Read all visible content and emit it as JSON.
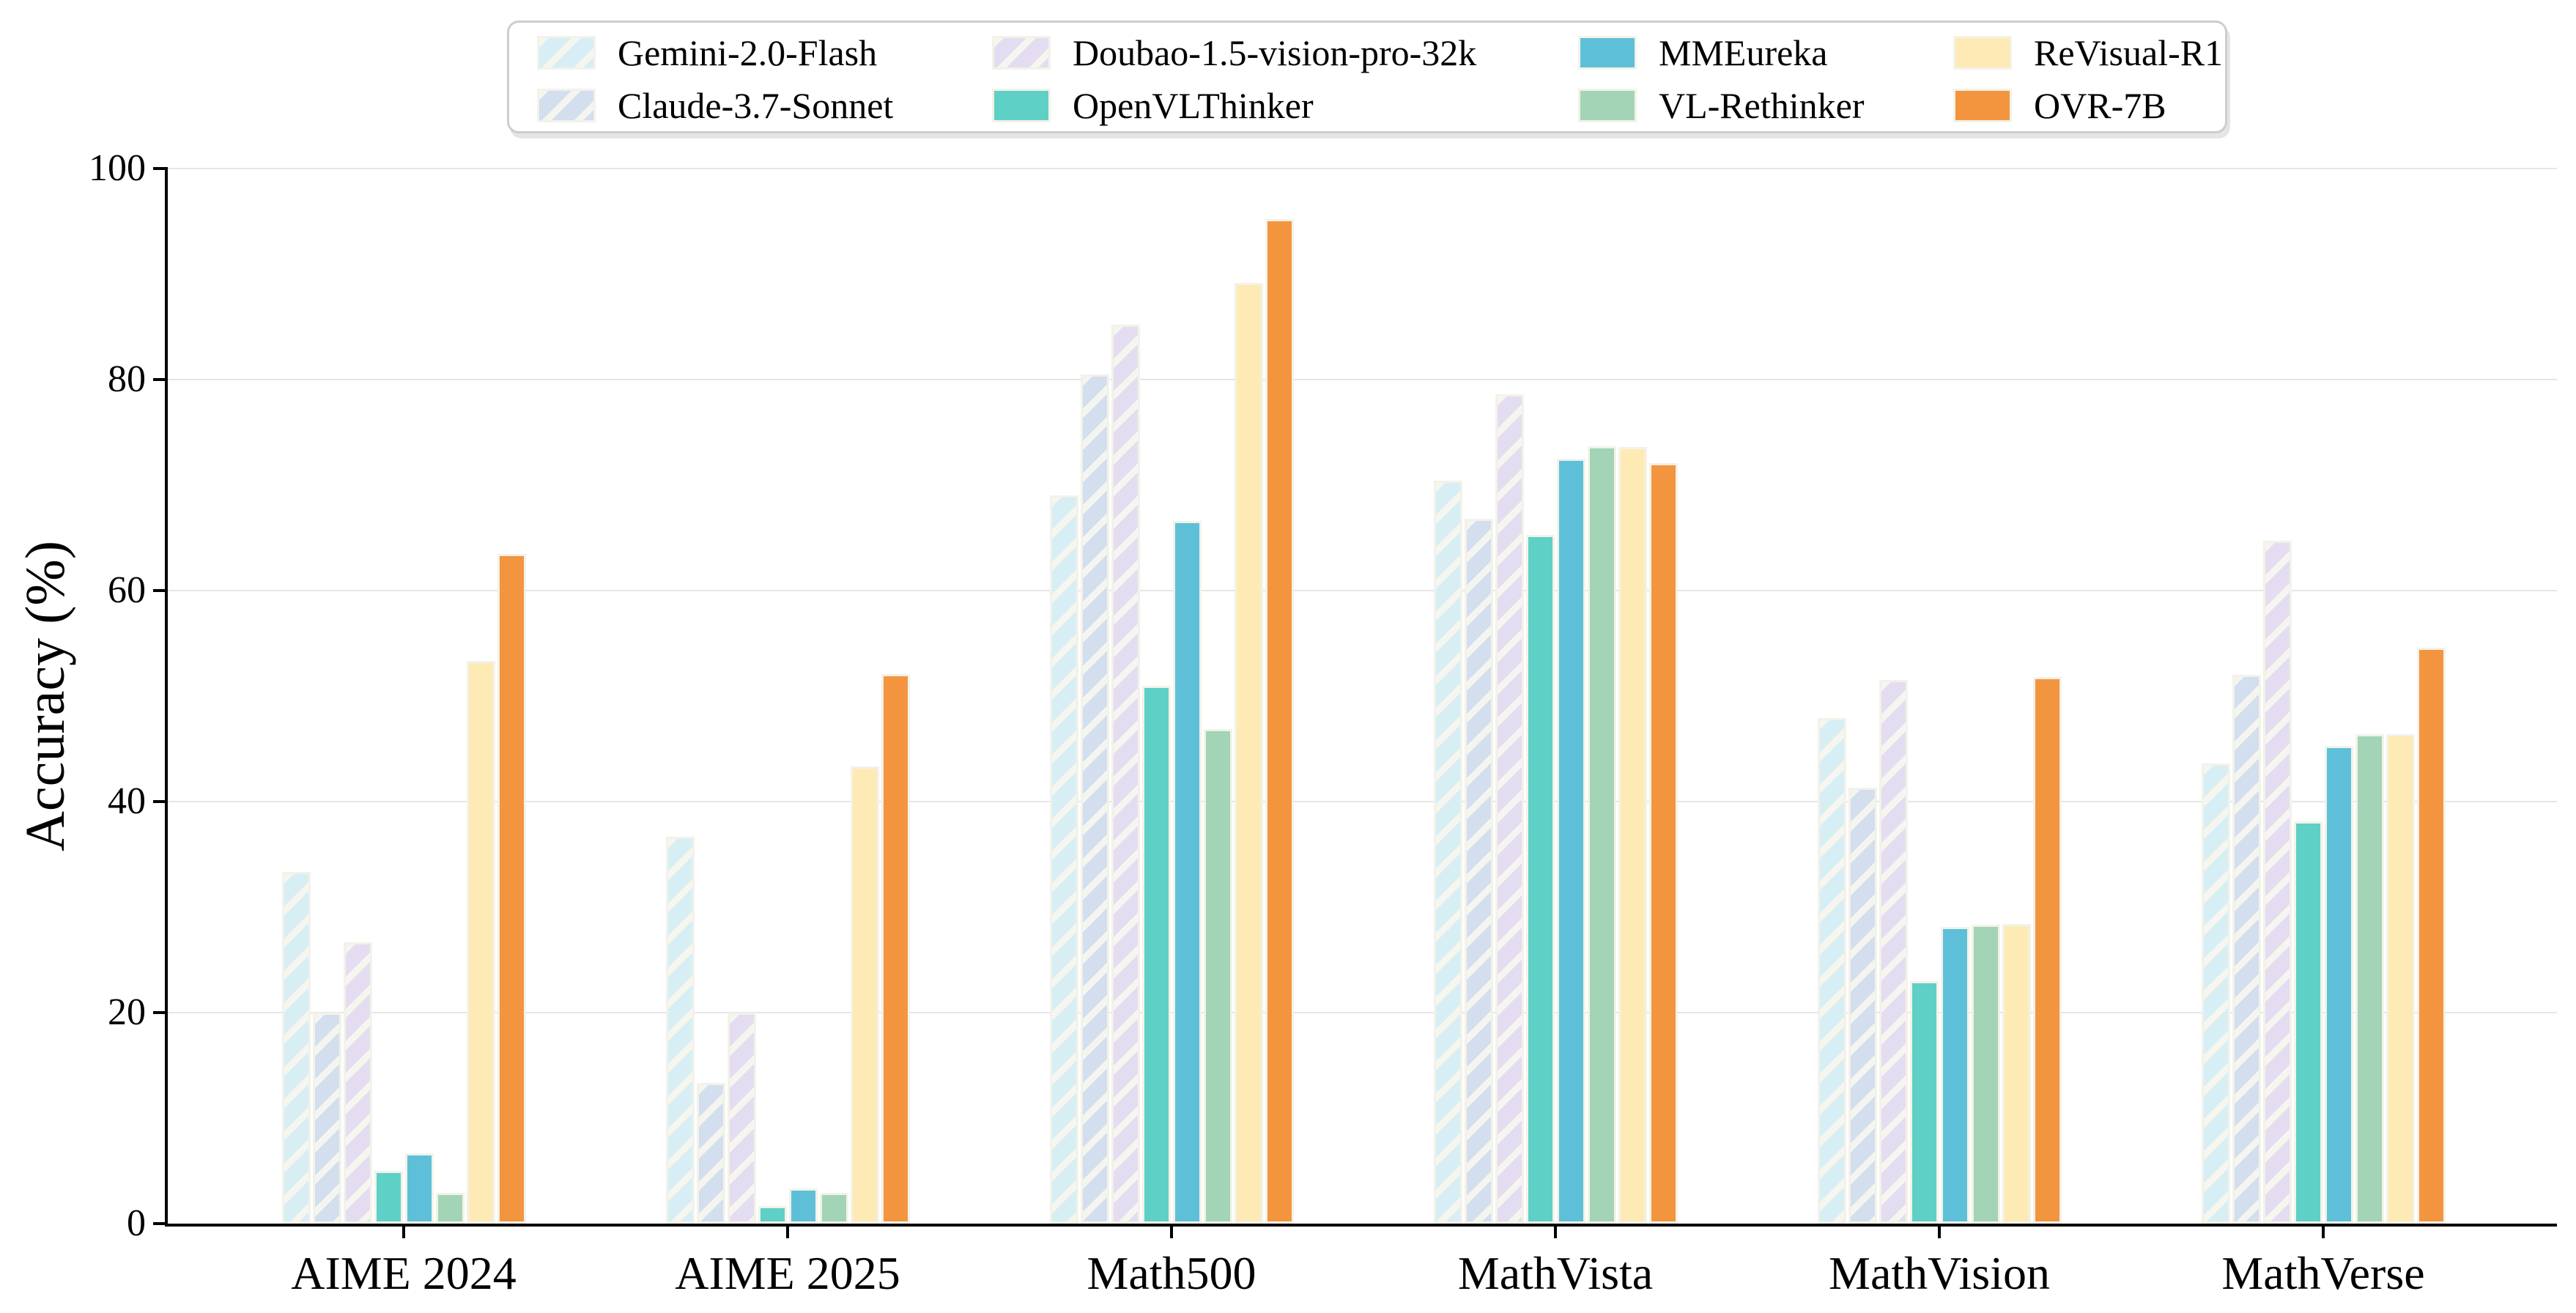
{
  "chart_data": {
    "type": "bar",
    "title": "",
    "xlabel": "",
    "ylabel": "Accuracy (%)",
    "ylim": [
      0,
      100
    ],
    "yticks": [
      0,
      20,
      40,
      60,
      80,
      100
    ],
    "grid": "horizontal",
    "legend_position": "top-center",
    "legend_rows": 2,
    "legend_columns": 4,
    "categories": [
      "AIME 2024",
      "AIME 2025",
      "Math500",
      "MathVista",
      "MathVision",
      "MathVerse"
    ],
    "series": [
      {
        "name": "Gemini-2.0-Flash",
        "color": "#d7eef4",
        "hatch": true,
        "values": [
          33.3,
          36.7,
          69.0,
          70.4,
          47.9,
          43.6
        ]
      },
      {
        "name": "Claude-3.7-Sonnet",
        "color": "#d3deee",
        "hatch": true,
        "values": [
          20.0,
          13.3,
          80.5,
          66.8,
          41.3,
          52.0
        ]
      },
      {
        "name": "Doubao-1.5-vision-pro-32k",
        "color": "#e4ddf1",
        "hatch": true,
        "values": [
          26.7,
          20.0,
          85.2,
          78.6,
          51.5,
          64.7
        ]
      },
      {
        "name": "OpenVLThinker",
        "color": "#5ed0c6",
        "hatch": false,
        "values": [
          5.0,
          1.7,
          51.0,
          65.3,
          23.0,
          38.1
        ]
      },
      {
        "name": "MMEureka",
        "color": "#5ec0d8",
        "hatch": false,
        "values": [
          6.7,
          3.3,
          66.6,
          72.5,
          28.1,
          45.3
        ]
      },
      {
        "name": "VL-Rethinker",
        "color": "#a2d4b5",
        "hatch": false,
        "values": [
          2.9,
          2.9,
          46.9,
          73.7,
          28.3,
          46.4
        ]
      },
      {
        "name": "ReVisual-R1",
        "color": "#fdeab5",
        "hatch": false,
        "values": [
          53.3,
          43.3,
          89.2,
          73.6,
          28.4,
          46.4
        ]
      },
      {
        "name": "OVR-7B",
        "color": "#f3953f",
        "hatch": false,
        "values": [
          63.5,
          52.1,
          95.2,
          72.1,
          51.8,
          54.6
        ]
      }
    ],
    "colors": {
      "bar_edge": "#f3f2e9",
      "gridline": "#e6e6e6",
      "axis": "#000000",
      "legend_border": "#cdcdcd",
      "background": "#ffffff"
    }
  }
}
